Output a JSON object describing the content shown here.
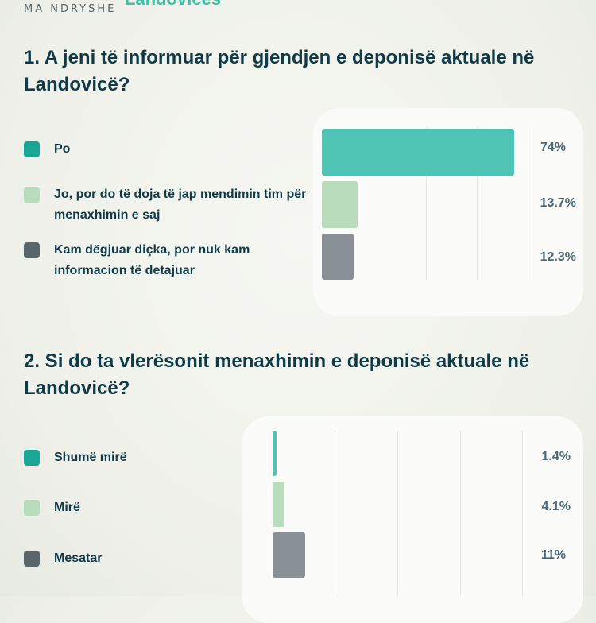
{
  "brand": {
    "text": "MA NDRYSHE",
    "title": "Landovicës"
  },
  "colors": {
    "teal": "#4fc3b4",
    "light_green": "#b8dcbc",
    "gray": "#8a9196",
    "olive": "#8fae5e",
    "swatch_teal": "#1aa595",
    "swatch_light": "#b8dcbc",
    "swatch_dark": "#58666b"
  },
  "chart_data": [
    {
      "type": "bar",
      "orientation": "horizontal",
      "title": "1. A jeni të informuar për gjendjen e deponisë aktuale në Landovicë?",
      "categories": [
        "Po",
        "Jo, por do të doja të jap mendimin tim për menaxhimin e saj",
        "Kam dëgjuar diçka, por nuk kam informacion të detajuar"
      ],
      "values": [
        74,
        13.7,
        12.3
      ],
      "labels": [
        "74%",
        "13.7%",
        "12.3%"
      ],
      "xlim": [
        0,
        80
      ]
    },
    {
      "type": "bar",
      "orientation": "horizontal",
      "title": "2. Si do ta vlerësonit menaxhimin e deponisë aktuale në Landovicë?",
      "categories": [
        "Shumë mirë",
        "Mirë",
        "Mesatar"
      ],
      "values": [
        1.4,
        4.1,
        11
      ],
      "labels": [
        "1.4%",
        "4.1%",
        "11%"
      ],
      "xlim": [
        0,
        40
      ]
    }
  ]
}
